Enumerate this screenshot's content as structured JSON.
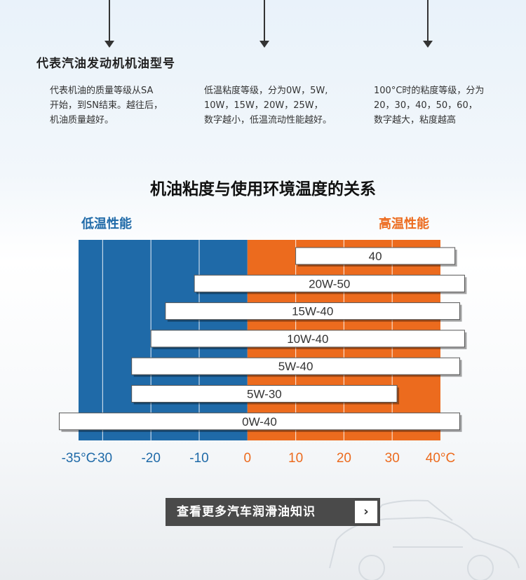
{
  "section": {
    "title": "代表汽油发动机机油型号",
    "descriptions": [
      "代表机油的质量等级从SA\n开始，到SN结束。越往后，\n机油质量越好。",
      "低温粘度等级，分为0W，5W,\n10W，15W，20W，25W，\n数字越小，低温流动性能越好。",
      "100°C时的粘度等级，分为\n20，30，40，50，60，\n数字越大，粘度越高"
    ]
  },
  "chart_data": {
    "type": "bar",
    "title": "机油粘度与使用环境温度的关系",
    "low_label": "低温性能",
    "high_label": "高温性能",
    "x_ticks": [
      "-35°C",
      "-30",
      "-20",
      "-10",
      "0",
      "10",
      "20",
      "30",
      "40°C"
    ],
    "x_tick_values": [
      -35,
      -30,
      -20,
      -10,
      0,
      10,
      20,
      30,
      40
    ],
    "xlim": [
      -35,
      40
    ],
    "colors": {
      "cold": "#1f6aa8",
      "hot": "#ec6b1e",
      "tick_cold": "#1f6aa8",
      "tick_hot": "#ec6b1e"
    },
    "series": [
      {
        "name": "40",
        "min": 10,
        "max": 43
      },
      {
        "name": "20W-50",
        "min": -11,
        "max": 45
      },
      {
        "name": "15W-40",
        "min": -17,
        "max": 44
      },
      {
        "name": "10W-40",
        "min": -20,
        "max": 45
      },
      {
        "name": "5W-40",
        "min": -24,
        "max": 44
      },
      {
        "name": "5W-30",
        "min": -24,
        "max": 31
      },
      {
        "name": "0W-40",
        "min": -39,
        "max": 44
      }
    ]
  },
  "cta": {
    "label": "查看更多汽车润滑油知识",
    "arrow": "›"
  }
}
